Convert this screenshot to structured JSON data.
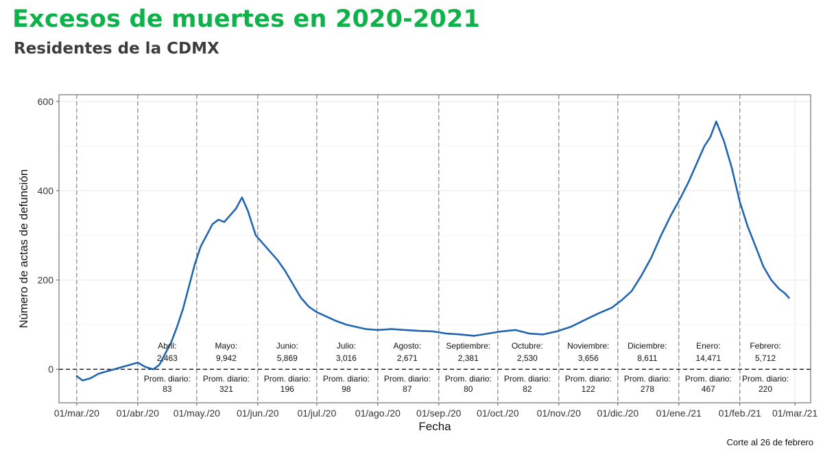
{
  "title": "Excesos de muertes en 2020-2021",
  "subtitle": "Residentes de la CDMX",
  "caption": "Corte al 26 de febrero",
  "colors": {
    "title": "#0fb14a",
    "line": "#1f65b0",
    "grid": "#ebebeb"
  },
  "chart_data": {
    "type": "line",
    "xlabel": "Fecha",
    "ylabel": "Número de actas de defunción",
    "x_tick_labels": [
      "01/mar./20",
      "01/abr./20",
      "01/may./20",
      "01/jun./20",
      "01/jul./20",
      "01/ago./20",
      "01/sep./20",
      "01/oct./20",
      "01/nov./20",
      "01/dic./20",
      "01/ene./21",
      "01/feb./21",
      "01/mar./21"
    ],
    "x_tick_dates": [
      "2020-03-01",
      "2020-04-01",
      "2020-05-01",
      "2020-06-01",
      "2020-07-01",
      "2020-08-01",
      "2020-09-01",
      "2020-10-01",
      "2020-11-01",
      "2020-12-01",
      "2021-01-01",
      "2021-02-01",
      "2021-03-01"
    ],
    "y_ticks": [
      0,
      200,
      400,
      600
    ],
    "xlim": [
      "2020-02-21",
      "2021-03-09"
    ],
    "ylim": [
      -75,
      615
    ],
    "grid": true,
    "reference_line_y": 0,
    "series": [
      {
        "points": [
          [
            "2020-03-01",
            -15
          ],
          [
            "2020-03-04",
            -25
          ],
          [
            "2020-03-08",
            -20
          ],
          [
            "2020-03-12",
            -10
          ],
          [
            "2020-03-16",
            -5
          ],
          [
            "2020-03-20",
            0
          ],
          [
            "2020-03-24",
            5
          ],
          [
            "2020-03-28",
            10
          ],
          [
            "2020-04-01",
            15
          ],
          [
            "2020-04-05",
            5
          ],
          [
            "2020-04-09",
            0
          ],
          [
            "2020-04-12",
            10
          ],
          [
            "2020-04-15",
            35
          ],
          [
            "2020-04-18",
            60
          ],
          [
            "2020-04-21",
            95
          ],
          [
            "2020-04-24",
            135
          ],
          [
            "2020-04-27",
            185
          ],
          [
            "2020-04-30",
            235
          ],
          [
            "2020-05-03",
            275
          ],
          [
            "2020-05-06",
            300
          ],
          [
            "2020-05-09",
            325
          ],
          [
            "2020-05-12",
            335
          ],
          [
            "2020-05-15",
            330
          ],
          [
            "2020-05-18",
            345
          ],
          [
            "2020-05-21",
            360
          ],
          [
            "2020-05-24",
            385
          ],
          [
            "2020-05-27",
            355
          ],
          [
            "2020-05-31",
            300
          ],
          [
            "2020-06-03",
            285
          ],
          [
            "2020-06-07",
            265
          ],
          [
            "2020-06-11",
            245
          ],
          [
            "2020-06-15",
            220
          ],
          [
            "2020-06-19",
            190
          ],
          [
            "2020-06-23",
            160
          ],
          [
            "2020-06-27",
            140
          ],
          [
            "2020-07-01",
            128
          ],
          [
            "2020-07-06",
            118
          ],
          [
            "2020-07-11",
            108
          ],
          [
            "2020-07-16",
            100
          ],
          [
            "2020-07-21",
            95
          ],
          [
            "2020-07-26",
            90
          ],
          [
            "2020-08-01",
            88
          ],
          [
            "2020-08-08",
            90
          ],
          [
            "2020-08-15",
            88
          ],
          [
            "2020-08-22",
            86
          ],
          [
            "2020-08-29",
            85
          ],
          [
            "2020-09-05",
            80
          ],
          [
            "2020-09-12",
            78
          ],
          [
            "2020-09-19",
            75
          ],
          [
            "2020-09-26",
            80
          ],
          [
            "2020-10-03",
            85
          ],
          [
            "2020-10-10",
            88
          ],
          [
            "2020-10-17",
            80
          ],
          [
            "2020-10-24",
            78
          ],
          [
            "2020-10-31",
            85
          ],
          [
            "2020-11-07",
            95
          ],
          [
            "2020-11-14",
            110
          ],
          [
            "2020-11-21",
            125
          ],
          [
            "2020-11-28",
            138
          ],
          [
            "2020-12-03",
            155
          ],
          [
            "2020-12-08",
            175
          ],
          [
            "2020-12-13",
            210
          ],
          [
            "2020-12-18",
            250
          ],
          [
            "2020-12-23",
            300
          ],
          [
            "2020-12-28",
            345
          ],
          [
            "2021-01-02",
            385
          ],
          [
            "2021-01-06",
            420
          ],
          [
            "2021-01-10",
            460
          ],
          [
            "2021-01-14",
            500
          ],
          [
            "2021-01-17",
            520
          ],
          [
            "2021-01-20",
            555
          ],
          [
            "2021-01-24",
            510
          ],
          [
            "2021-01-28",
            450
          ],
          [
            "2021-02-01",
            375
          ],
          [
            "2021-02-05",
            320
          ],
          [
            "2021-02-09",
            275
          ],
          [
            "2021-02-13",
            230
          ],
          [
            "2021-02-17",
            200
          ],
          [
            "2021-02-21",
            180
          ],
          [
            "2021-02-24",
            170
          ],
          [
            "2021-02-26",
            160
          ]
        ]
      }
    ],
    "monthly_annotations": [
      {
        "date": "2020-04-16",
        "month": "Abril:",
        "total": "2,463",
        "daily_label": "Prom. diario:",
        "daily": "83"
      },
      {
        "date": "2020-05-16",
        "month": "Mayo:",
        "total": "9,942",
        "daily_label": "Prom. diario:",
        "daily": "321"
      },
      {
        "date": "2020-06-16",
        "month": "Junio:",
        "total": "5,869",
        "daily_label": "Prom. diario:",
        "daily": "196"
      },
      {
        "date": "2020-07-16",
        "month": "Julio:",
        "total": "3,016",
        "daily_label": "Prom. diario:",
        "daily": "98"
      },
      {
        "date": "2020-08-16",
        "month": "Agosto:",
        "total": "2,671",
        "daily_label": "Prom. diario:",
        "daily": "87"
      },
      {
        "date": "2020-09-16",
        "month": "Septiembre:",
        "total": "2,381",
        "daily_label": "Prom. diario:",
        "daily": "80"
      },
      {
        "date": "2020-10-16",
        "month": "Octubre:",
        "total": "2,530",
        "daily_label": "Prom. diario:",
        "daily": "82"
      },
      {
        "date": "2020-11-16",
        "month": "Noviembre:",
        "total": "3,656",
        "daily_label": "Prom. diario:",
        "daily": "122"
      },
      {
        "date": "2020-12-16",
        "month": "Diciembre:",
        "total": "8,611",
        "daily_label": "Prom. diario:",
        "daily": "278"
      },
      {
        "date": "2021-01-16",
        "month": "Enero:",
        "total": "14,471",
        "daily_label": "Prom. diario:",
        "daily": "467"
      },
      {
        "date": "2021-02-14",
        "month": "Febrero:",
        "total": "5,712",
        "daily_label": "Prom. diario:",
        "daily": "220"
      }
    ]
  }
}
